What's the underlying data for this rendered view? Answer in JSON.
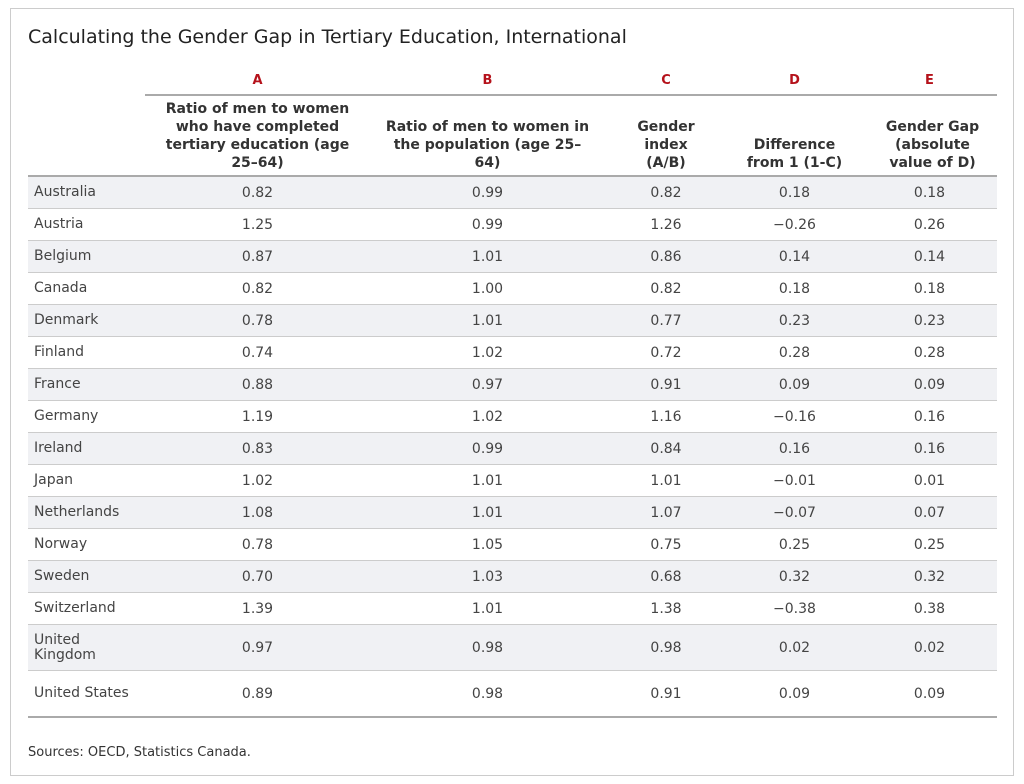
{
  "title": "Calculating the Gender Gap in Tertiary Education, International",
  "columns": [
    {
      "letter": "A",
      "label": "Ratio of men to women who have completed tertiary education (age 25–64)"
    },
    {
      "letter": "B",
      "label": "Ratio of men to women in the population (age 25–64)"
    },
    {
      "letter": "C",
      "label": "Gender index (A/B)"
    },
    {
      "letter": "D",
      "label": "Difference from 1 (1-C)"
    },
    {
      "letter": "E",
      "label": "Gender Gap (absolute value of D)"
    }
  ],
  "rows": [
    {
      "country": "Australia",
      "values": [
        "0.82",
        "0.99",
        "0.82",
        "0.18",
        "0.18"
      ]
    },
    {
      "country": "Austria",
      "values": [
        "1.25",
        "0.99",
        "1.26",
        "−0.26",
        "0.26"
      ]
    },
    {
      "country": "Belgium",
      "values": [
        "0.87",
        "1.01",
        "0.86",
        "0.14",
        "0.14"
      ]
    },
    {
      "country": "Canada",
      "values": [
        "0.82",
        "1.00",
        "0.82",
        "0.18",
        "0.18"
      ]
    },
    {
      "country": "Denmark",
      "values": [
        "0.78",
        "1.01",
        "0.77",
        "0.23",
        "0.23"
      ]
    },
    {
      "country": "Finland",
      "values": [
        "0.74",
        "1.02",
        "0.72",
        "0.28",
        "0.28"
      ]
    },
    {
      "country": "France",
      "values": [
        "0.88",
        "0.97",
        "0.91",
        "0.09",
        "0.09"
      ]
    },
    {
      "country": "Germany",
      "values": [
        "1.19",
        "1.02",
        "1.16",
        "−0.16",
        "0.16"
      ]
    },
    {
      "country": "Ireland",
      "values": [
        "0.83",
        "0.99",
        "0.84",
        "0.16",
        "0.16"
      ]
    },
    {
      "country": "Japan",
      "values": [
        "1.02",
        "1.01",
        "1.01",
        "−0.01",
        "0.01"
      ]
    },
    {
      "country": "Netherlands",
      "values": [
        "1.08",
        "1.01",
        "1.07",
        "−0.07",
        "0.07"
      ]
    },
    {
      "country": "Norway",
      "values": [
        "0.78",
        "1.05",
        "0.75",
        "0.25",
        "0.25"
      ]
    },
    {
      "country": "Sweden",
      "values": [
        "0.70",
        "1.03",
        "0.68",
        "0.32",
        "0.32"
      ]
    },
    {
      "country": "Switzerland",
      "values": [
        "1.39",
        "1.01",
        "1.38",
        "−0.38",
        "0.38"
      ]
    },
    {
      "country": "United Kingdom",
      "values": [
        "0.97",
        "0.98",
        "0.98",
        "0.02",
        "0.02"
      ]
    },
    {
      "country": "United States",
      "values": [
        "0.89",
        "0.98",
        "0.91",
        "0.09",
        "0.09"
      ]
    }
  ],
  "source": "Sources: OECD, Statistics Canada.",
  "colors": {
    "letter": "#b5121b",
    "shade": "#f0f1f4"
  }
}
